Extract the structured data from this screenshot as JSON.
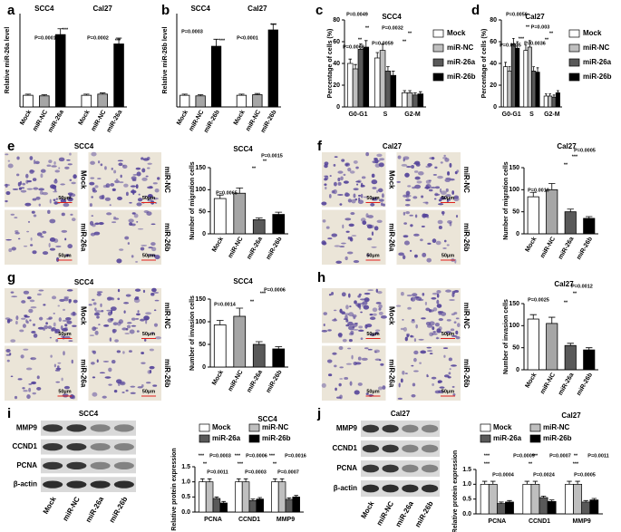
{
  "chart_data": [
    {
      "type": "bar",
      "panel": "a",
      "ylabel": "Relative miR-26a level",
      "groups": [
        "SCC4",
        "Cal27"
      ],
      "categories": [
        "Mock",
        "miR-NC",
        "miR-26a",
        "Mock",
        "miR-NC",
        "miR-26a"
      ],
      "values": [
        1.0,
        0.95,
        6.2,
        1.0,
        1.1,
        5.4
      ],
      "errors": [
        0.1,
        0.1,
        0.5,
        0.1,
        0.1,
        0.5
      ],
      "colors": [
        "#ffffff",
        "#a6a6a6",
        "#000000",
        "#ffffff",
        "#a6a6a6",
        "#000000"
      ],
      "ylim": [
        0,
        8
      ],
      "annotations": [
        "P=0.0001",
        "***",
        "P=0.0002",
        "***"
      ]
    },
    {
      "type": "bar",
      "panel": "b",
      "ylabel": "Relative miR-26b level",
      "groups": [
        "SCC4",
        "Cal27"
      ],
      "categories": [
        "Mock",
        "miR-NC",
        "miR-26b",
        "Mock",
        "miR-NC",
        "miR-26b"
      ],
      "values": [
        1.0,
        0.95,
        5.2,
        1.0,
        1.05,
        6.6
      ],
      "errors": [
        0.1,
        0.1,
        0.6,
        0.1,
        0.1,
        0.5
      ],
      "colors": [
        "#ffffff",
        "#a6a6a6",
        "#000000",
        "#ffffff",
        "#a6a6a6",
        "#000000"
      ],
      "ylim": [
        0,
        8
      ],
      "annotations": [
        "P=0.0003",
        "***",
        "P<0.0001",
        "***"
      ]
    },
    {
      "type": "bar",
      "panel": "c",
      "title": "SCC4",
      "ylabel": "Percentage of cells (%)",
      "categories": [
        "G0-G1",
        "S",
        "G2-M"
      ],
      "series": [
        {
          "name": "Mock",
          "color": "#ffffff",
          "values": [
            40,
            45,
            13
          ],
          "errors": [
            4,
            5,
            2
          ]
        },
        {
          "name": "miR-NC",
          "color": "#bfbfbf",
          "values": [
            35,
            52,
            13
          ],
          "errors": [
            4,
            6,
            2
          ]
        },
        {
          "name": "miR-26a",
          "color": "#595959",
          "values": [
            53,
            33,
            11
          ],
          "errors": [
            5,
            4,
            2
          ]
        },
        {
          "name": "miR-26b",
          "color": "#000000",
          "values": [
            55,
            29,
            12
          ],
          "errors": [
            6,
            4,
            2
          ]
        }
      ],
      "ylim": [
        0,
        80
      ],
      "yticks": [
        0,
        20,
        40,
        60,
        80
      ],
      "legend": "right",
      "annotations": [
        "P=0.0049",
        "P=0.0068",
        "**",
        "**",
        "P=0.0032",
        "P=0.0059",
        "**",
        "**"
      ]
    },
    {
      "type": "bar",
      "panel": "d",
      "title": "Cal27",
      "ylabel": "Percentage of cells (%)",
      "categories": [
        "G0-G1",
        "S",
        "G2-M"
      ],
      "series": [
        {
          "name": "Mock",
          "color": "#ffffff",
          "values": [
            37,
            52,
            10
          ],
          "errors": [
            4,
            5,
            2
          ]
        },
        {
          "name": "miR-NC",
          "color": "#bfbfbf",
          "values": [
            33,
            55,
            10
          ],
          "errors": [
            4,
            6,
            2
          ]
        },
        {
          "name": "miR-26a",
          "color": "#595959",
          "values": [
            58,
            33,
            9
          ],
          "errors": [
            5,
            4,
            2
          ]
        },
        {
          "name": "miR-26b",
          "color": "#000000",
          "values": [
            54,
            32,
            13
          ],
          "errors": [
            6,
            4,
            2
          ]
        }
      ],
      "ylim": [
        0,
        80
      ],
      "yticks": [
        0,
        20,
        40,
        60,
        80
      ],
      "legend": "right",
      "annotations": [
        "P=0.0056",
        "P=0.0035",
        "***",
        "**",
        "P=0.003",
        "P=0.0036",
        "**",
        "**"
      ]
    },
    {
      "type": "micrographs",
      "panel": "e",
      "title": "SCC4",
      "labels": [
        "Mock",
        "miR-NC",
        "miR-26a",
        "miR-26b"
      ],
      "scale_bars": [
        "50μm",
        "50μm",
        "50μm",
        "50μm"
      ]
    },
    {
      "type": "bar",
      "title": "SCC4",
      "ylabel": "Number of migration cells",
      "categories": [
        "Mock",
        "miR-NC",
        "miR-26a",
        "miR-26b"
      ],
      "values": [
        80,
        92,
        32,
        44
      ],
      "errors": [
        8,
        12,
        4,
        5
      ],
      "colors": [
        "#ffffff",
        "#a6a6a6",
        "#595959",
        "#000000"
      ],
      "ylim": [
        0,
        150
      ],
      "yticks": [
        0,
        50,
        100,
        150
      ],
      "annotations": [
        "P=0.0065",
        "P=0.0015",
        "**",
        "**"
      ]
    },
    {
      "type": "micrographs",
      "panel": "f",
      "title": "Cal27",
      "labels": [
        "Mock",
        "miR-NC",
        "miR-26a",
        "miR-26b"
      ],
      "scale_bars": [
        "50μm",
        "50μm",
        "50μm",
        "50μm"
      ]
    },
    {
      "type": "bar",
      "title": "Cal27",
      "ylabel": "Number of migration cells",
      "categories": [
        "Mock",
        "miR-NC",
        "miR-26a",
        "miR-26b"
      ],
      "values": [
        84,
        100,
        50,
        35
      ],
      "errors": [
        10,
        14,
        6,
        4
      ],
      "colors": [
        "#ffffff",
        "#a6a6a6",
        "#595959",
        "#000000"
      ],
      "ylim": [
        0,
        150
      ],
      "yticks": [
        0,
        50,
        100,
        150
      ],
      "annotations": [
        "P=0.0010",
        "P=0.0005",
        "**",
        "***"
      ]
    },
    {
      "type": "micrographs",
      "panel": "g",
      "title": "SCC4",
      "labels": [
        "Mock",
        "miR-NC",
        "miR-26a",
        "miR-26b"
      ],
      "scale_bars": [
        "50μm",
        "50μm",
        "50μm",
        "50μm"
      ]
    },
    {
      "type": "bar",
      "title": "SCC4",
      "ylabel": "Number of invasion cells",
      "categories": [
        "Mock",
        "miR-NC",
        "miR-26a",
        "miR-26b"
      ],
      "values": [
        93,
        112,
        50,
        40
      ],
      "errors": [
        10,
        18,
        6,
        5
      ],
      "colors": [
        "#ffffff",
        "#a6a6a6",
        "#595959",
        "#000000"
      ],
      "ylim": [
        0,
        150
      ],
      "yticks": [
        0,
        50,
        100,
        150
      ],
      "annotations": [
        "P=0.0014",
        "P=0.0006",
        "**",
        "***"
      ]
    },
    {
      "type": "micrographs",
      "panel": "h",
      "labels": [
        "Mock",
        "miR-NC",
        "miR-26a",
        "miR-26b"
      ],
      "scale_bars": [
        "50μm",
        "50μm",
        "50μm",
        "50μm"
      ]
    },
    {
      "type": "bar",
      "title": "Cal27",
      "ylabel": "Number of invasion cells",
      "categories": [
        "Mock",
        "miR-NC",
        "miR-26a",
        "miR-26b"
      ],
      "values": [
        115,
        105,
        55,
        45
      ],
      "errors": [
        10,
        14,
        5,
        5
      ],
      "colors": [
        "#ffffff",
        "#a6a6a6",
        "#595959",
        "#000000"
      ],
      "ylim": [
        0,
        150
      ],
      "yticks": [
        0,
        50,
        100,
        150
      ],
      "annotations": [
        "P=0.0025",
        "P=0.0012",
        "**",
        "**"
      ]
    },
    {
      "type": "blot",
      "panel": "i",
      "title": "SCC4",
      "rows": [
        "MMP9",
        "CCND1",
        "PCNA",
        "β-actin"
      ],
      "lanes": [
        "Mock",
        "miR-NC",
        "miR-26a",
        "miR-26b"
      ]
    },
    {
      "type": "bar",
      "title": "SCC4",
      "ylabel": "Relative protein expression",
      "categories": [
        "PCNA",
        "CCND1",
        "MMP9"
      ],
      "series": [
        {
          "name": "Mock",
          "color": "#ffffff",
          "values": [
            1.0,
            1.0,
            1.0
          ],
          "errors": [
            0.1,
            0.1,
            0.1
          ]
        },
        {
          "name": "miR-NC",
          "color": "#bfbfbf",
          "values": [
            1.0,
            1.0,
            1.0
          ],
          "errors": [
            0.1,
            0.1,
            0.1
          ]
        },
        {
          "name": "miR-26a",
          "color": "#595959",
          "values": [
            0.45,
            0.38,
            0.42
          ],
          "errors": [
            0.05,
            0.05,
            0.05
          ]
        },
        {
          "name": "miR-26b",
          "color": "#000000",
          "values": [
            0.3,
            0.43,
            0.5
          ],
          "errors": [
            0.05,
            0.05,
            0.05
          ]
        }
      ],
      "ylim": [
        0,
        1.5
      ],
      "yticks": [
        {
          "value": 0,
          "label": "0.0"
        },
        0.5,
        {
          "value": 1,
          "label": "1.0"
        },
        1.5
      ],
      "legend": "top",
      "annotations": [
        "***",
        "**",
        "P=0.0011",
        "***",
        "***",
        "P=0.0003",
        "***",
        "**",
        "P=0.0007",
        "P=0.0003",
        "P=0.0006",
        "P=0.0016"
      ]
    },
    {
      "type": "blot",
      "panel": "j",
      "title": "Cal27",
      "rows": [
        "MMP9",
        "CCND1",
        "PCNA",
        "β-actin"
      ],
      "lanes": [
        "Mock",
        "miR-NC",
        "miR-26a",
        "miR-26b"
      ]
    },
    {
      "type": "bar",
      "title": "Cal27",
      "ylabel": "Relative protein expression",
      "categories": [
        "PCNA",
        "CCND1",
        "MMP9"
      ],
      "series": [
        {
          "name": "Mock",
          "color": "#ffffff",
          "values": [
            1.0,
            1.0,
            1.0
          ],
          "errors": [
            0.1,
            0.1,
            0.1
          ]
        },
        {
          "name": "miR-NC",
          "color": "#bfbfbf",
          "values": [
            1.0,
            1.0,
            1.0
          ],
          "errors": [
            0.1,
            0.1,
            0.1
          ]
        },
        {
          "name": "miR-26a",
          "color": "#595959",
          "values": [
            0.35,
            0.55,
            0.4
          ],
          "errors": [
            0.05,
            0.05,
            0.05
          ]
        },
        {
          "name": "miR-26b",
          "color": "#000000",
          "values": [
            0.4,
            0.42,
            0.47
          ],
          "errors": [
            0.05,
            0.05,
            0.05
          ]
        }
      ],
      "ylim": [
        0,
        1.5
      ],
      "yticks": [
        {
          "value": 0,
          "label": "0.0"
        },
        0.5,
        {
          "value": 1,
          "label": "1.0"
        },
        1.5
      ],
      "legend": "top",
      "annotations": [
        "***",
        "P=0.0009",
        "***",
        "P=0.0007",
        "**",
        "P=0.0011",
        "***",
        "**",
        "***",
        "P=0.0004",
        "P=0.0024",
        "P=0.0005"
      ]
    }
  ]
}
